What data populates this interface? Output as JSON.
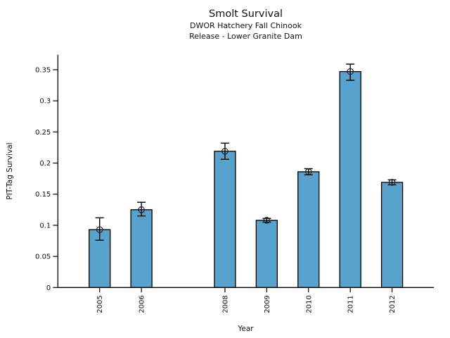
{
  "chart_data": {
    "type": "bar",
    "title": "Smolt Survival",
    "subtitle1": "DWOR Hatchery Fall Chinook",
    "subtitle2": "Release - Lower Granite Dam",
    "xlabel": "Year",
    "ylabel": "PIT-Tag Survival",
    "categories": [
      "2005",
      "2006",
      "2008",
      "2009",
      "2010",
      "2011",
      "2012"
    ],
    "x_years": [
      2005,
      2006,
      2008,
      2009,
      2010,
      2011,
      2012
    ],
    "values": [
      0.093,
      0.125,
      0.219,
      0.108,
      0.186,
      0.347,
      0.169
    ],
    "error_low": [
      0.076,
      0.115,
      0.206,
      0.105,
      0.181,
      0.333,
      0.165
    ],
    "error_high": [
      0.112,
      0.137,
      0.232,
      0.111,
      0.191,
      0.359,
      0.173
    ],
    "error_marker": "open-circle",
    "yticks": [
      0,
      0.05,
      0.1,
      0.15,
      0.2,
      0.25,
      0.3,
      0.35
    ],
    "ytick_labels": [
      "0",
      "0.05",
      "0.1",
      "0.15",
      "0.2",
      "0.25",
      "0.3",
      "0.35"
    ],
    "ylim": [
      0,
      0.374
    ],
    "xlim": [
      2004,
      2013
    ],
    "grid": false,
    "legend": null,
    "bar_color": "#58A2CE",
    "bar_edge_color": "#000000",
    "axis_color": "#000000"
  }
}
